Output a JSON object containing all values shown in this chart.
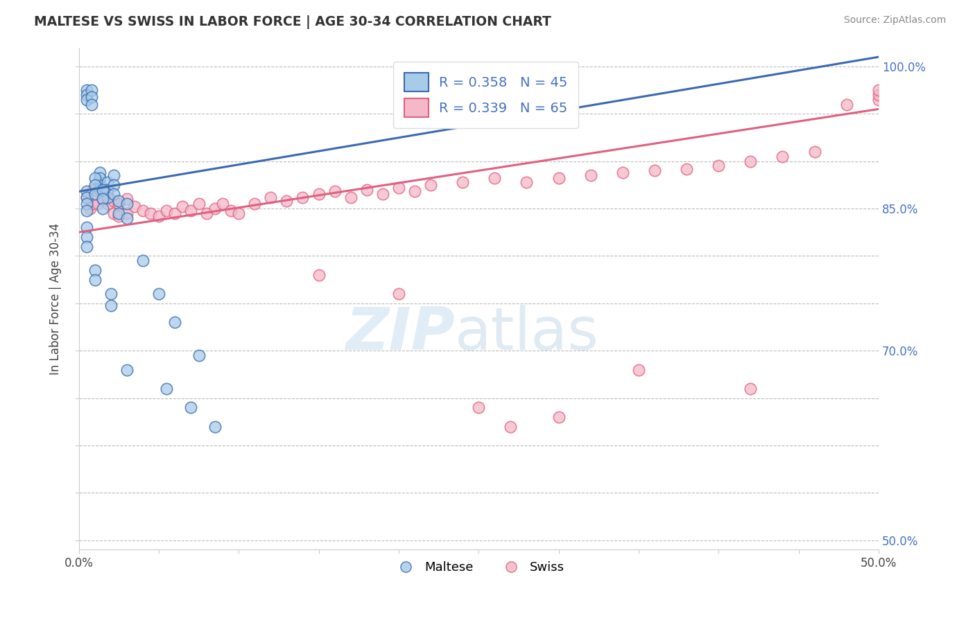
{
  "title": "MALTESE VS SWISS IN LABOR FORCE | AGE 30-34 CORRELATION CHART",
  "source_text": "Source: ZipAtlas.com",
  "ylabel": "In Labor Force | Age 30-34",
  "xlim": [
    0.0,
    0.5
  ],
  "ylim": [
    0.49,
    1.02
  ],
  "xticks": [
    0.0,
    0.05,
    0.1,
    0.15,
    0.2,
    0.25,
    0.3,
    0.35,
    0.4,
    0.45,
    0.5
  ],
  "ytick_positions": [
    0.5,
    0.55,
    0.6,
    0.65,
    0.7,
    0.75,
    0.8,
    0.85,
    0.9,
    0.95,
    1.0
  ],
  "ytick_labels": [
    "50.0%",
    "",
    "",
    "",
    "70.0%",
    "",
    "",
    "85.0%",
    "",
    "",
    "100.0%"
  ],
  "legend_blue_label": "R = 0.358   N = 45",
  "legend_pink_label": "R = 0.339   N = 65",
  "legend_maltese": "Maltese",
  "legend_swiss": "Swiss",
  "blue_color": "#a8cce8",
  "pink_color": "#f4b8c8",
  "blue_line_color": "#3a6ab0",
  "pink_line_color": "#e06080",
  "watermark_zip": "ZIP",
  "watermark_atlas": "atlas",
  "blue_trend_x": [
    0.0,
    0.5
  ],
  "blue_trend_y": [
    0.868,
    1.01
  ],
  "pink_trend_x": [
    0.0,
    0.5
  ],
  "pink_trend_y": [
    0.825,
    0.955
  ],
  "maltese_x": [
    0.005,
    0.005,
    0.005,
    0.008,
    0.008,
    0.008,
    0.013,
    0.013,
    0.013,
    0.013,
    0.018,
    0.018,
    0.018,
    0.022,
    0.022,
    0.022,
    0.005,
    0.005,
    0.005,
    0.005,
    0.01,
    0.01,
    0.01,
    0.015,
    0.015,
    0.015,
    0.025,
    0.025,
    0.03,
    0.03,
    0.04,
    0.05,
    0.06,
    0.075,
    0.005,
    0.005,
    0.005,
    0.01,
    0.01,
    0.02,
    0.02,
    0.03,
    0.055,
    0.07,
    0.085
  ],
  "maltese_y": [
    0.975,
    0.97,
    0.965,
    0.975,
    0.968,
    0.96,
    0.888,
    0.882,
    0.875,
    0.87,
    0.878,
    0.87,
    0.862,
    0.885,
    0.875,
    0.865,
    0.868,
    0.862,
    0.855,
    0.848,
    0.882,
    0.875,
    0.865,
    0.87,
    0.86,
    0.85,
    0.858,
    0.845,
    0.855,
    0.84,
    0.795,
    0.76,
    0.73,
    0.695,
    0.83,
    0.82,
    0.81,
    0.785,
    0.775,
    0.76,
    0.748,
    0.68,
    0.66,
    0.64,
    0.62
  ],
  "swiss_x": [
    0.005,
    0.007,
    0.009,
    0.009,
    0.012,
    0.012,
    0.015,
    0.015,
    0.018,
    0.018,
    0.022,
    0.022,
    0.025,
    0.025,
    0.03,
    0.03,
    0.035,
    0.04,
    0.045,
    0.05,
    0.055,
    0.06,
    0.065,
    0.07,
    0.075,
    0.08,
    0.085,
    0.09,
    0.095,
    0.1,
    0.11,
    0.12,
    0.13,
    0.14,
    0.15,
    0.16,
    0.17,
    0.18,
    0.19,
    0.2,
    0.21,
    0.22,
    0.24,
    0.26,
    0.28,
    0.3,
    0.32,
    0.34,
    0.36,
    0.38,
    0.4,
    0.42,
    0.44,
    0.46,
    0.48,
    0.5,
    0.5,
    0.5,
    0.15,
    0.2,
    0.25,
    0.27,
    0.3,
    0.35,
    0.42
  ],
  "swiss_y": [
    0.862,
    0.85,
    0.87,
    0.855,
    0.868,
    0.855,
    0.87,
    0.86,
    0.865,
    0.855,
    0.858,
    0.845,
    0.855,
    0.842,
    0.86,
    0.845,
    0.852,
    0.848,
    0.845,
    0.842,
    0.848,
    0.845,
    0.852,
    0.848,
    0.855,
    0.845,
    0.85,
    0.855,
    0.848,
    0.845,
    0.855,
    0.862,
    0.858,
    0.862,
    0.865,
    0.868,
    0.862,
    0.87,
    0.865,
    0.872,
    0.868,
    0.875,
    0.878,
    0.882,
    0.878,
    0.882,
    0.885,
    0.888,
    0.89,
    0.892,
    0.895,
    0.9,
    0.905,
    0.91,
    0.96,
    0.965,
    0.97,
    0.975,
    0.78,
    0.76,
    0.64,
    0.62,
    0.63,
    0.68,
    0.66
  ]
}
